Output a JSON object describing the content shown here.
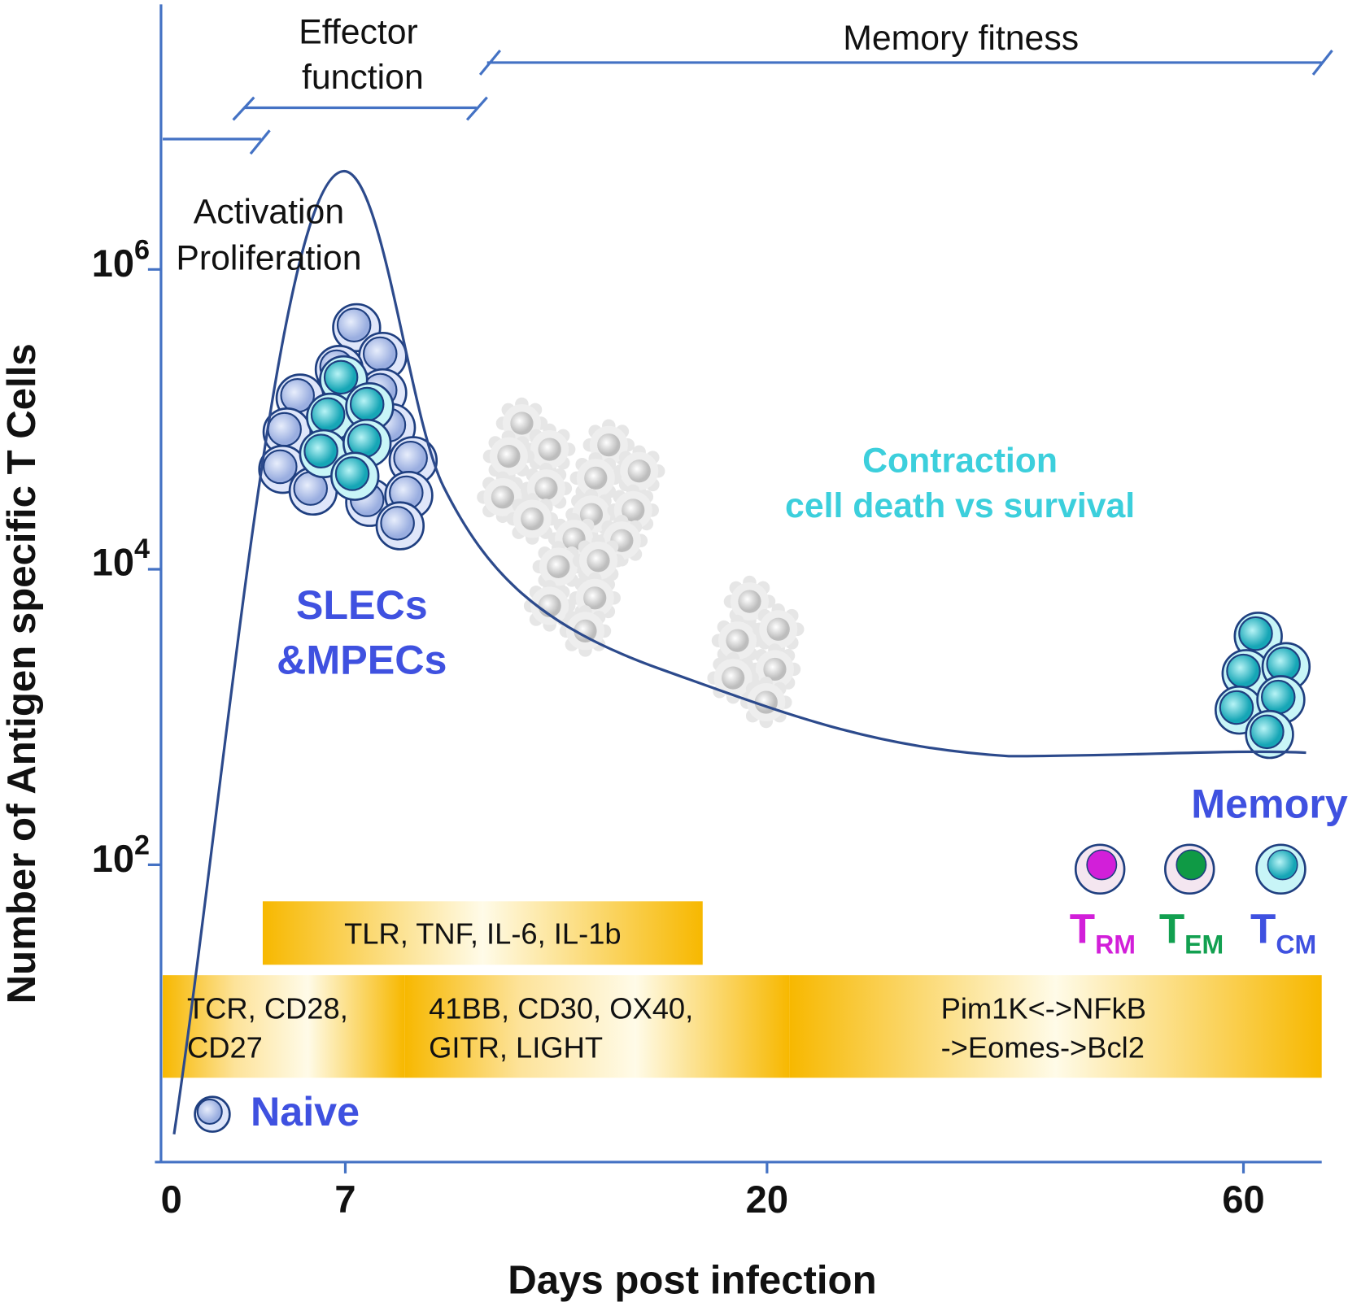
{
  "y_axis": {
    "title": "Number of Antigen specific T Cells",
    "ticks": [
      {
        "base": "10",
        "exp": "6"
      },
      {
        "base": "10",
        "exp": "4"
      },
      {
        "base": "10",
        "exp": "2"
      }
    ]
  },
  "x_axis": {
    "title": "Days post infection",
    "ticks": [
      "0",
      "7",
      "20",
      "60"
    ]
  },
  "phases": {
    "activation": [
      "Activation",
      "Proliferation"
    ],
    "effector": [
      "Effector",
      "function"
    ],
    "memory_fitness": "Memory fitness"
  },
  "labels": {
    "slecs": [
      "SLECs",
      "&MPECs"
    ],
    "contraction": [
      "Contraction",
      "cell death vs survival"
    ],
    "memory": "Memory",
    "naive": "Naive"
  },
  "subsets": [
    {
      "main": "T",
      "sub": "RM"
    },
    {
      "main": "T",
      "sub": "EM"
    },
    {
      "main": "T",
      "sub": "CM"
    }
  ],
  "signals": {
    "inflammatory": "TLR, TNF, IL-6, IL-1b",
    "early": [
      "TCR, CD28,",
      "CD27"
    ],
    "mid": [
      "41BB, CD30, OX40,",
      "GITR, LIGHT"
    ],
    "late": [
      "Pim1K<->NFkB",
      "->Eomes->Bcl2"
    ]
  }
}
